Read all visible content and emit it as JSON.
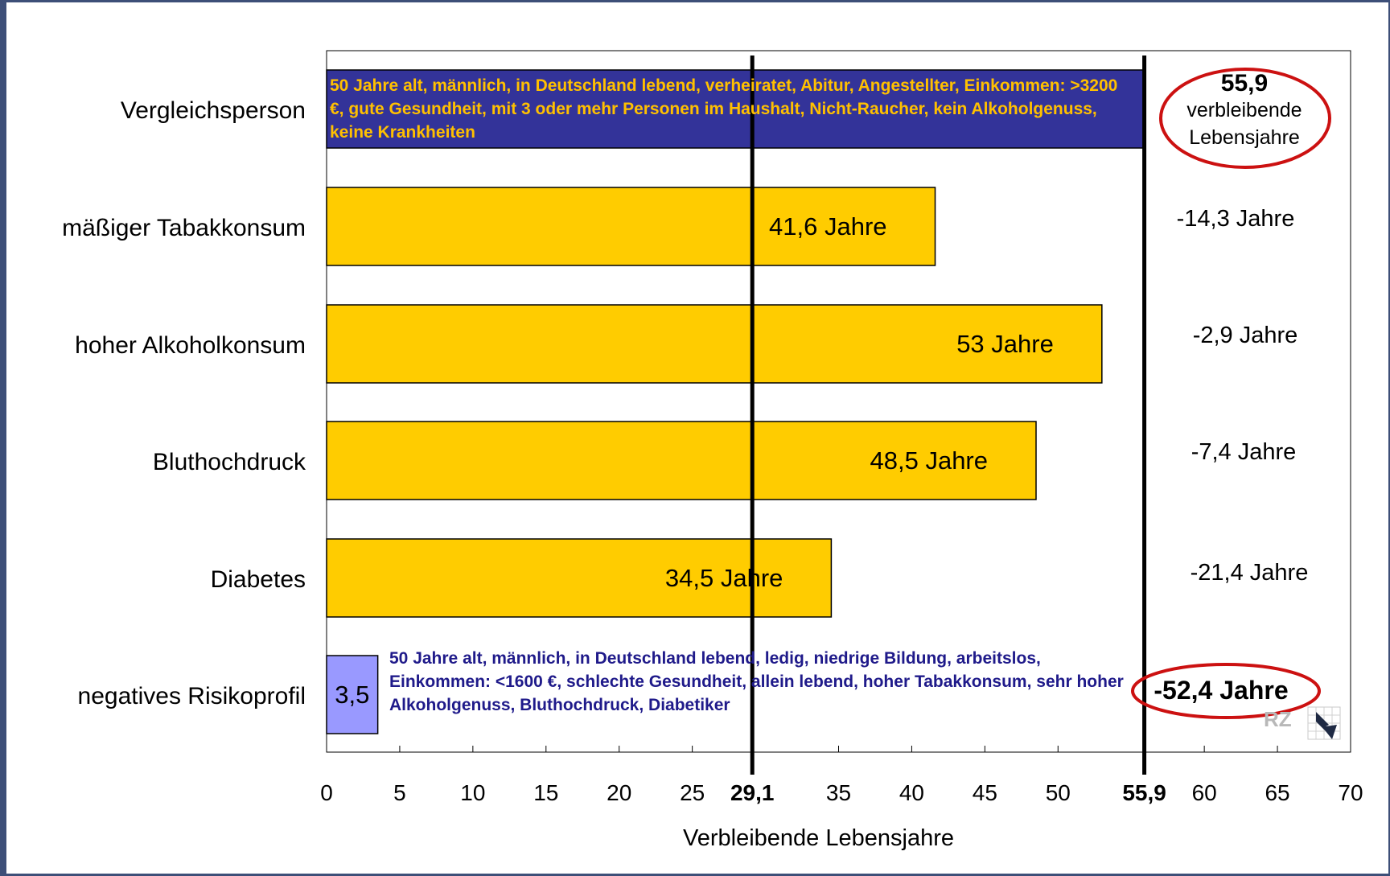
{
  "chart_data": {
    "type": "bar",
    "orientation": "horizontal",
    "categories": [
      "Vergleichsperson",
      "mäßiger Tabakkonsum",
      "hoher Alkoholkonsum",
      "Bluthochdruck",
      "Diabetes",
      "negatives Risikoprofil"
    ],
    "values": [
      55.9,
      41.6,
      53,
      48.5,
      34.5,
      3.5
    ],
    "bar_labels": [
      "",
      "41,6 Jahre",
      "53 Jahre",
      "48,5 Jahre",
      "34,5 Jahre",
      "3,5"
    ],
    "bar_colors": [
      "#333399",
      "#ffcc00",
      "#ffcc00",
      "#ffcc00",
      "#ffcc00",
      "#9999ff"
    ],
    "differences": [
      "",
      "-14,3 Jahre",
      "-2,9 Jahre",
      "-7,4 Jahre",
      "-21,4 Jahre",
      "-52,4 Jahre"
    ],
    "reference": {
      "value": "55,9",
      "line1": "verbleibende",
      "line2": "Lebensjahre"
    },
    "descriptions": {
      "reference": "50 Jahre alt, männlich, in Deutschland lebend, verheiratet, Abitur, Angestellter, Einkommen: >3200 €, gute Gesundheit, mit 3 oder mehr Personen im Haushalt, Nicht-Raucher, kein Alkoholgenuss, keine Krankheiten",
      "negative": "50 Jahre alt, männlich, in Deutschland lebend, ledig, niedrige Bildung, arbeitslos, Einkommen: <1600 €, schlechte Gesundheit, allein lebend, hoher Tabakkonsum, sehr hoher Alkoholgenuss, Bluthochdruck, Diabetiker"
    },
    "vertical_lines": [
      {
        "value": 29.1,
        "label": "29,1"
      },
      {
        "value": 55.9,
        "label": "55,9"
      }
    ],
    "xlabel": "Verbleibende Lebensjahre",
    "xlim": [
      0,
      70
    ],
    "xticks": [
      0,
      5,
      10,
      15,
      20,
      25,
      35,
      40,
      45,
      50,
      60,
      65,
      70
    ],
    "xtick_labels": [
      "0",
      "5",
      "10",
      "15",
      "20",
      "25",
      "35",
      "40",
      "45",
      "50",
      "60",
      "65",
      "70"
    ],
    "grid": false,
    "highlight_color": "#cc1111",
    "logo_text": "RZ"
  }
}
